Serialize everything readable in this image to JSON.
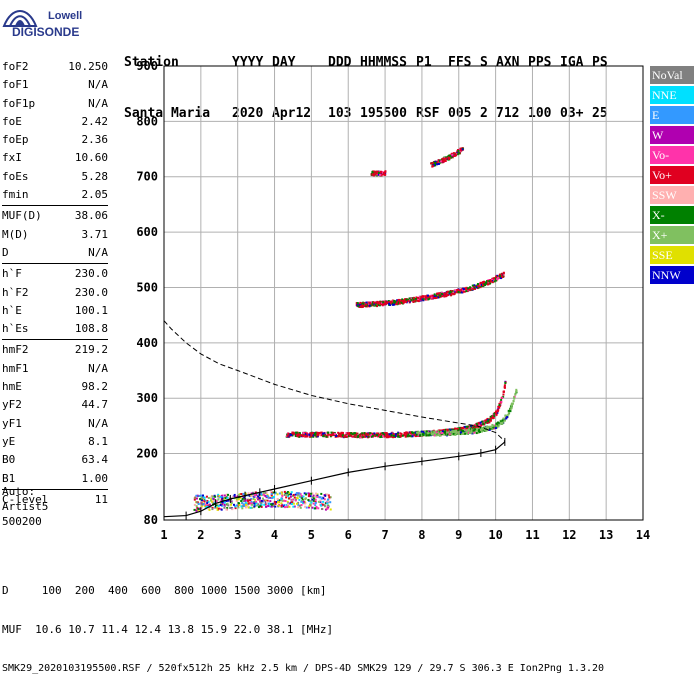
{
  "logo": {
    "line1": "Lowell",
    "line2": "DIGISONDE"
  },
  "header": {
    "labels": [
      "Station",
      "YYYY",
      "DAY",
      "DDD",
      "HHMMSS",
      "P1",
      "FFS",
      "S",
      "AXN",
      "PPS",
      "IGA",
      "PS"
    ],
    "values": [
      "Santa Maria",
      "2020",
      "Apr12",
      "103",
      "195500",
      "RSF",
      "005",
      "2",
      "712",
      "100",
      "03+",
      "25"
    ]
  },
  "params": {
    "group1": [
      {
        "name": "foF2",
        "value": "10.250"
      },
      {
        "name": "foF1",
        "value": "N/A"
      },
      {
        "name": "foF1p",
        "value": "N/A"
      },
      {
        "name": "foE",
        "value": "2.42"
      },
      {
        "name": "foEp",
        "value": "2.36"
      },
      {
        "name": "fxI",
        "value": "10.60"
      },
      {
        "name": "foEs",
        "value": "5.28"
      },
      {
        "name": "fmin",
        "value": "2.05"
      }
    ],
    "group2": [
      {
        "name": "MUF(D)",
        "value": "38.06"
      },
      {
        "name": "M(D)",
        "value": "3.71"
      },
      {
        "name": "D",
        "value": "N/A"
      }
    ],
    "group3": [
      {
        "name": "h`F",
        "value": "230.0"
      },
      {
        "name": "h`F2",
        "value": "230.0"
      },
      {
        "name": "h`E",
        "value": "100.1"
      },
      {
        "name": "h`Es",
        "value": "108.8"
      }
    ],
    "group4": [
      {
        "name": "hmF2",
        "value": "219.2"
      },
      {
        "name": "hmF1",
        "value": "N/A"
      },
      {
        "name": "hmE",
        "value": "98.2"
      },
      {
        "name": "yF2",
        "value": "44.7"
      },
      {
        "name": "yF1",
        "value": "N/A"
      },
      {
        "name": "yE",
        "value": "8.1"
      },
      {
        "name": "B0",
        "value": "63.4"
      },
      {
        "name": "B1",
        "value": "1.00"
      }
    ],
    "group5": [
      {
        "name": "C-level",
        "value": "11"
      }
    ]
  },
  "auto": {
    "line1": "Auto:",
    "line2": "Artist5",
    "line3": "500200"
  },
  "legend": [
    {
      "label": "NoVal",
      "color": "#808080"
    },
    {
      "label": "NNE",
      "color": "#00e0ff"
    },
    {
      "label": "E",
      "color": "#3399ff"
    },
    {
      "label": "W",
      "color": "#b000b0"
    },
    {
      "label": "Vo-",
      "color": "#ff33aa"
    },
    {
      "label": "Vo+",
      "color": "#e00020"
    },
    {
      "label": "SSW",
      "color": "#ffb0b0"
    },
    {
      "label": "X-",
      "color": "#008000"
    },
    {
      "label": "X+",
      "color": "#80c060"
    },
    {
      "label": "SSE",
      "color": "#e0e000"
    },
    {
      "label": "NNW",
      "color": "#0000cc"
    }
  ],
  "footer": {
    "line1": "D     100  200  400  600  800 1000 1500 3000 [km]",
    "line2": "MUF  10.6 10.7 11.4 12.4 13.8 15.9 22.0 38.1 [MHz]",
    "line3": "SMK29_2020103195500.RSF / 520fx512h 25 kHz 2.5 km / DPS-4D SMK29 129 / 29.7 S 306.3 E Ion2Png 1.3.20"
  },
  "chart_data": {
    "type": "scatter",
    "xlabel": "",
    "ylabel": "",
    "xlim": [
      1,
      14
    ],
    "ylim": [
      80,
      900
    ],
    "xticks": [
      1,
      2,
      3,
      4,
      5,
      6,
      7,
      8,
      9,
      10,
      11,
      12,
      13,
      14
    ],
    "yticks": [
      80,
      200,
      300,
      400,
      500,
      600,
      700,
      800,
      900
    ],
    "grid": true,
    "legend_position": "right",
    "traces": [
      {
        "name": "F2 O-trace",
        "color": "#e00020",
        "x": [
          4.3,
          5.0,
          5.5,
          6.0,
          6.5,
          7.0,
          7.5,
          8.0,
          8.5,
          9.0,
          9.4,
          9.8,
          10.0,
          10.1,
          10.2,
          10.25
        ],
        "y": [
          236,
          236,
          236,
          235,
          235,
          235,
          236,
          238,
          240,
          244,
          250,
          262,
          275,
          292,
          312,
          335
        ]
      },
      {
        "name": "F2 X-trace",
        "color": "#80c060",
        "x": [
          7.8,
          8.5,
          9.0,
          9.5,
          10.0,
          10.2,
          10.35,
          10.45,
          10.55
        ],
        "y": [
          238,
          238,
          240,
          243,
          252,
          262,
          278,
          295,
          318
        ]
      },
      {
        "name": "Second hop",
        "color": "#e00020",
        "x": [
          6.2,
          6.8,
          7.3,
          7.8,
          8.3,
          8.8,
          9.3,
          9.8,
          10.2
        ],
        "y": [
          470,
          472,
          475,
          480,
          486,
          492,
          500,
          512,
          525
        ]
      },
      {
        "name": "Third hop",
        "color": "#e00020",
        "x": [
          8.2,
          8.5,
          8.8,
          9.1
        ],
        "y": [
          722,
          730,
          740,
          752
        ]
      },
      {
        "name": "Third hop lower",
        "color": "#e00020",
        "x": [
          6.6,
          7.0
        ],
        "y": [
          708,
          708
        ]
      },
      {
        "name": "Es / E layer",
        "color": "#0000cc",
        "x": [
          1.8,
          2.5,
          3.0,
          3.5,
          4.0,
          4.5,
          5.0,
          5.5
        ],
        "y": [
          112,
          114,
          116,
          118,
          120,
          118,
          116,
          114
        ]
      }
    ],
    "profile": {
      "name": "Electron density profile",
      "x": [
        1.0,
        1.6,
        2.0,
        2.4,
        2.8,
        3.2,
        3.6,
        4.0,
        5.0,
        6.0,
        7.0,
        8.0,
        9.0,
        9.6,
        10.0,
        10.25
      ],
      "y": [
        86,
        88,
        96,
        110,
        118,
        124,
        130,
        136,
        151,
        166,
        177,
        186,
        195,
        201,
        207,
        221
      ]
    },
    "muf_curve": {
      "name": "MUF curve",
      "x": [
        1.0,
        1.2,
        1.6,
        2.0,
        2.5,
        3.0,
        4.0,
        5.0,
        6.0,
        7.0,
        8.0,
        9.0,
        9.5,
        10.0,
        10.25
      ],
      "y": [
        440,
        425,
        400,
        380,
        362,
        350,
        325,
        305,
        290,
        278,
        266,
        255,
        250,
        238,
        222
      ]
    }
  }
}
